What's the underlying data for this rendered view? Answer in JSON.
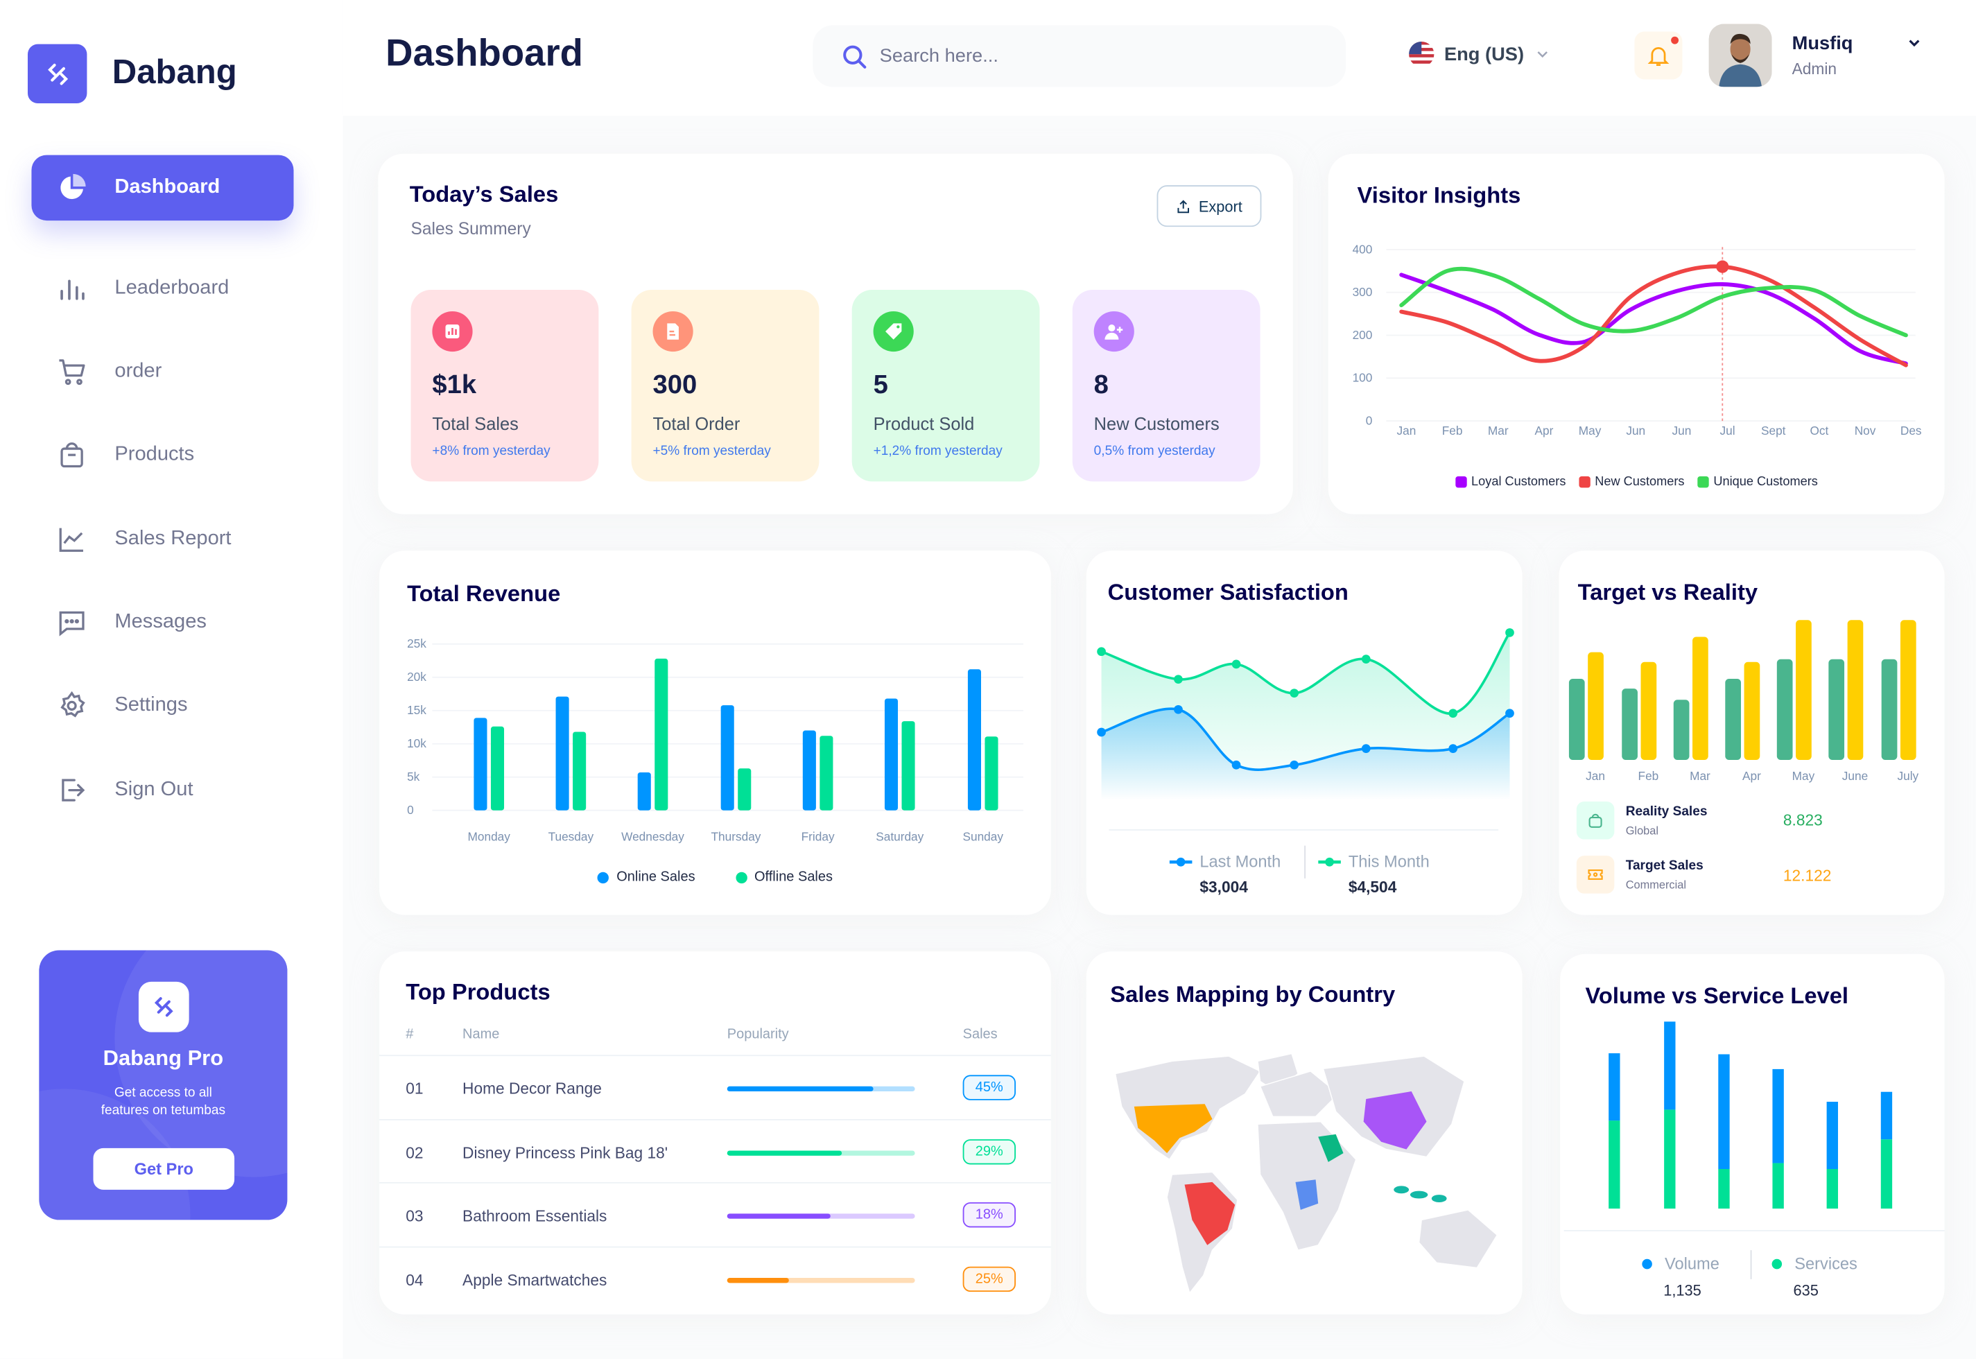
{
  "brand": {
    "name": "Dabang"
  },
  "header": {
    "title": "Dashboard",
    "search_placeholder": "Search here...",
    "language": "Eng (US)",
    "user": {
      "name": "Musfiq",
      "role": "Admin"
    }
  },
  "sidebar": {
    "items": [
      {
        "label": "Dashboard",
        "icon": "pie-chart-icon",
        "active": true
      },
      {
        "label": "Leaderboard",
        "icon": "bar-chart-icon"
      },
      {
        "label": "order",
        "icon": "cart-icon"
      },
      {
        "label": "Products",
        "icon": "shopping-bag-icon"
      },
      {
        "label": "Sales Report",
        "icon": "line-chart-icon"
      },
      {
        "label": "Messages",
        "icon": "message-icon"
      },
      {
        "label": "Settings",
        "icon": "gear-icon"
      },
      {
        "label": "Sign Out",
        "icon": "sign-out-icon"
      }
    ]
  },
  "promo": {
    "title": "Dabang Pro",
    "text": "Get access to all features on tetumbas",
    "button": "Get Pro"
  },
  "todays_sales": {
    "title": "Today’s Sales",
    "subtitle": "Sales Summery",
    "export_label": "Export",
    "cards": [
      {
        "value": "$1k",
        "label": "Total Sales",
        "change": "+8% from yesterday",
        "bg": "#ffe2e5",
        "icon_color": "#fa5a7d",
        "icon": "chart-icon"
      },
      {
        "value": "300",
        "label": "Total Order",
        "change": "+5% from yesterday",
        "bg": "#fff4de",
        "icon_color": "#ff947a",
        "icon": "document-icon"
      },
      {
        "value": "5",
        "label": "Product Sold",
        "change": "+1,2% from yesterday",
        "bg": "#dcfce7",
        "icon_color": "#3cd856",
        "icon": "tag-icon"
      },
      {
        "value": "8",
        "label": "New Customers",
        "change": "0,5% from yesterday",
        "bg": "#f3e8ff",
        "icon_color": "#bf83ff",
        "icon": "user-add-icon"
      }
    ]
  },
  "visitor_insights": {
    "title": "Visitor Insights"
  },
  "total_revenue": {
    "title": "Total Revenue"
  },
  "customer_satisfaction": {
    "title": "Customer Satisfaction",
    "last_month": {
      "label": "Last Month",
      "value": "$3,004"
    },
    "this_month": {
      "label": "This Month",
      "value": "$4,504"
    }
  },
  "target_vs_reality": {
    "title": "Target vs Reality",
    "rows": [
      {
        "label": "Reality Sales",
        "sub": "Global",
        "value": "8.823",
        "color": "#27ae60",
        "icon": "bag-icon"
      },
      {
        "label": "Target Sales",
        "sub": "Commercial",
        "value": "12.122",
        "color": "#ffa412",
        "icon": "ticket-icon"
      }
    ]
  },
  "top_products": {
    "title": "Top Products",
    "columns": [
      "#",
      "Name",
      "Popularity",
      "Sales"
    ],
    "rows": [
      {
        "rank": "01",
        "name": "Home Decor Range",
        "popularity": 0.78,
        "sales": "45%",
        "color": "#0095ff"
      },
      {
        "rank": "02",
        "name": "Disney Princess Pink Bag 18'",
        "popularity": 0.61,
        "sales": "29%",
        "color": "#00e096"
      },
      {
        "rank": "03",
        "name": "Bathroom Essentials",
        "popularity": 0.55,
        "sales": "18%",
        "color": "#884dff"
      },
      {
        "rank": "04",
        "name": "Apple Smartwatches",
        "popularity": 0.33,
        "sales": "25%",
        "color": "#ff8f0d"
      }
    ]
  },
  "sales_mapping": {
    "title": "Sales Mapping by Country",
    "highlighted": [
      {
        "country": "United States",
        "color": "#ffa800"
      },
      {
        "country": "Brazil",
        "color": "#ef4444"
      },
      {
        "country": "China",
        "color": "#a855f7"
      },
      {
        "country": "Saudi Arabia",
        "color": "#0bb783"
      },
      {
        "country": "DR Congo",
        "color": "#5b8def"
      },
      {
        "country": "Indonesia",
        "color": "#14b8a6"
      }
    ]
  },
  "volume_service": {
    "title": "Volume vs Service Level",
    "volume": {
      "label": "Volume",
      "value": "1,135"
    },
    "services": {
      "label": "Services",
      "value": "635"
    }
  },
  "chart_data": [
    {
      "id": "visitor",
      "type": "line",
      "categories": [
        "Jan",
        "Feb",
        "Mar",
        "Apr",
        "May",
        "Jun",
        "Jun",
        "Jul",
        "Sept",
        "Oct",
        "Nov",
        "Des"
      ],
      "yticks": [
        "0",
        "100",
        "200",
        "300",
        "400"
      ],
      "ylim": [
        0,
        400
      ],
      "grid": true,
      "legend": "bottom",
      "highlight": {
        "series": 1,
        "index": 7
      },
      "series": [
        {
          "name": "Loyal Customers",
          "color": "#a700ff",
          "values": [
            341,
            303,
            260,
            201,
            185,
            260,
            303,
            319,
            298,
            239,
            163,
            134
          ]
        },
        {
          "name": "New Customers",
          "color": "#ef4444",
          "values": [
            255,
            230,
            185,
            140,
            175,
            290,
            345,
            360,
            330,
            265,
            190,
            130
          ]
        },
        {
          "name": "Unique Customers",
          "color": "#3cd856",
          "values": [
            270,
            350,
            340,
            285,
            225,
            210,
            240,
            290,
            310,
            305,
            245,
            200
          ]
        }
      ]
    },
    {
      "id": "revenue",
      "type": "bar",
      "categories": [
        "Monday",
        "Tuesday",
        "Wednesday",
        "Thursday",
        "Friday",
        "Saturday",
        "Sunday"
      ],
      "yticks": [
        "0",
        "5k",
        "10k",
        "15k",
        "20k",
        "25k"
      ],
      "ylim": [
        0,
        25
      ],
      "grid": true,
      "legend": "bottom",
      "series": [
        {
          "name": "Online Sales",
          "color": "#0095ff",
          "values": [
            13.9,
            17.1,
            5.7,
            15.8,
            12.0,
            16.8,
            21.2
          ]
        },
        {
          "name": "Offline Sales",
          "color": "#00e096",
          "values": [
            12.6,
            11.8,
            22.8,
            6.3,
            11.2,
            13.4,
            11.1
          ]
        }
      ]
    },
    {
      "id": "satisfaction",
      "type": "area",
      "series": [
        {
          "name": "Last Month",
          "color": "#0095ff",
          "values": [
            69,
            87,
            43,
            43,
            56,
            56,
            84
          ]
        },
        {
          "name": "This Month",
          "color": "#07e098",
          "values": [
            133,
            111,
            123,
            100,
            127,
            84,
            148
          ]
        }
      ]
    },
    {
      "id": "target",
      "type": "bar",
      "categories": [
        "Jan",
        "Feb",
        "Mar",
        "Apr",
        "May",
        "June",
        "July"
      ],
      "series": [
        {
          "name": "Reality Sales",
          "color": "#4ab58e",
          "values": [
            58,
            51,
            43,
            58,
            72,
            72,
            72
          ]
        },
        {
          "name": "Target Sales",
          "color": "#ffcf00",
          "values": [
            77,
            70,
            88,
            70,
            100,
            100,
            100
          ]
        }
      ]
    },
    {
      "id": "volume",
      "type": "stacked-bar",
      "series": [
        {
          "name": "Services",
          "color": "#00e096",
          "values": [
            89,
            100,
            40,
            46,
            40,
            70
          ]
        },
        {
          "name": "Volume",
          "color": "#0095ff",
          "values": [
            68,
            89,
            116,
            95,
            68,
            48
          ]
        }
      ]
    }
  ]
}
